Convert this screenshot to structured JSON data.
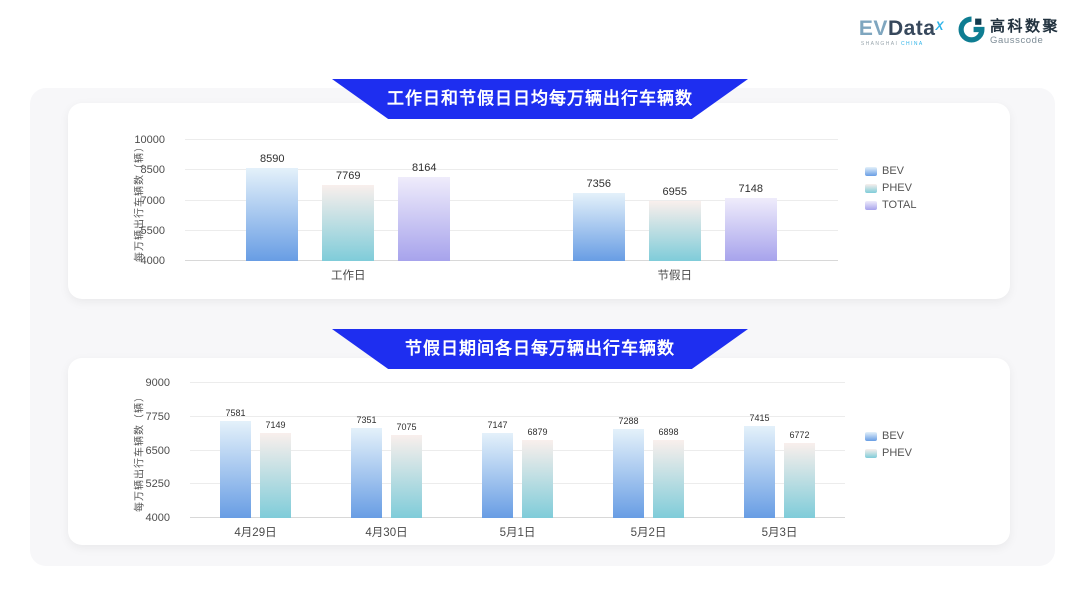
{
  "brand": {
    "evdata_ev": "EV",
    "evdata_data": "Data",
    "evdata_x": "X",
    "evdata_sub_1": "SHANGHAI",
    "evdata_sub_2": "CHINA",
    "gausscode_cn": "高科数聚",
    "gausscode_en": "Gausscode"
  },
  "series_colors": {
    "BEV": {
      "top": "#e4f1fa",
      "bottom": "#689de4"
    },
    "PHEV": {
      "top": "#f9efec",
      "bottom": "#7fccd9"
    },
    "TOTAL": {
      "top": "#efecfb",
      "bottom": "#a7a3ec"
    }
  },
  "chart_data": [
    {
      "type": "bar",
      "title": "工作日和节假日日均每万辆出行车辆数",
      "categories": [
        "工作日",
        "节假日"
      ],
      "series": [
        {
          "name": "BEV",
          "values": [
            8590,
            7356
          ]
        },
        {
          "name": "PHEV",
          "values": [
            7769,
            6955
          ]
        },
        {
          "name": "TOTAL",
          "values": [
            8164,
            7148
          ]
        }
      ],
      "ylabel": "每万辆出行车辆数（辆）",
      "xlabel": "",
      "ylim": [
        4000,
        10000
      ],
      "yticks": [
        4000,
        5500,
        7000,
        8500,
        10000
      ],
      "grid": true,
      "legend_position": "right"
    },
    {
      "type": "bar",
      "title": "节假日期间各日每万辆出行车辆数",
      "categories": [
        "4月29日",
        "4月30日",
        "5月1日",
        "5月2日",
        "5月3日"
      ],
      "series": [
        {
          "name": "BEV",
          "values": [
            7581,
            7351,
            7147,
            7288,
            7415
          ]
        },
        {
          "name": "PHEV",
          "values": [
            7149,
            7075,
            6879,
            6898,
            6772
          ]
        }
      ],
      "ylabel": "每万辆出行车辆数（辆）",
      "xlabel": "",
      "ylim": [
        4000,
        9000
      ],
      "yticks": [
        4000,
        5250,
        6500,
        7750,
        9000
      ],
      "grid": true,
      "legend_position": "right"
    }
  ]
}
